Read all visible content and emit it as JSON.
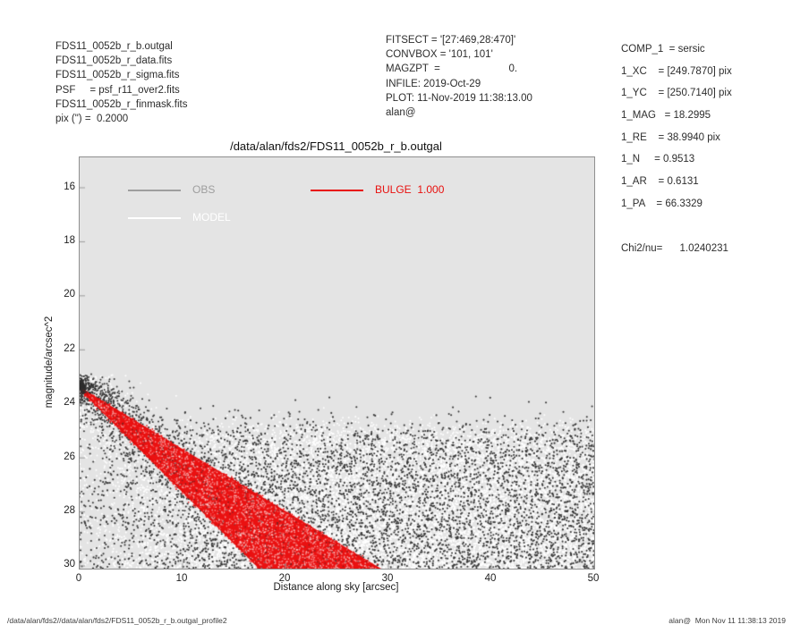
{
  "header_left": {
    "lines": [
      "FDS11_0052b_r_b.outgal",
      "FDS11_0052b_r_data.fits",
      "FDS11_0052b_r_sigma.fits",
      "PSF     = psf_r11_over2.fits",
      "FDS11_0052b_r_finmask.fits",
      "pix (\") =  0.2000"
    ]
  },
  "header_center": {
    "lines": [
      "FITSECT = '[27:469,28:470]'",
      "CONVBOX = '101, 101'",
      "MAGZPT  =                        0.",
      "INFILE: 2019-Oct-29",
      "PLOT: 11-Nov-2019 11:38:13.00",
      "alan@"
    ]
  },
  "right_panel": {
    "lines": [
      "COMP_1  = sersic",
      "1_XC    = [249.7870] pix",
      "1_YC    = [250.7140] pix",
      "1_MAG   = 18.2995",
      "1_RE    = 38.9940 pix",
      "1_N     = 0.9513",
      "1_AR    = 0.6131",
      "1_PA    = 66.3329"
    ],
    "chi2_line": "Chi2/nu=      1.0240231"
  },
  "footer": {
    "left": "/data/alan/fds2//data/alan/fds2/FDS11_0052b_r_b.outgal_profile2",
    "right": "alan@  Mon Nov 11 11:38:13 2019"
  },
  "chart_data": {
    "type": "scatter",
    "title": "/data/alan/fds2/FDS11_0052b_r_b.outgal",
    "xlabel": "Distance along sky [arcsec]",
    "ylabel": "magnitude/arcsec^2",
    "xlim": [
      0,
      50
    ],
    "ylim": [
      30,
      16
    ],
    "xticks": [
      0,
      10,
      20,
      30,
      40,
      50
    ],
    "yticks": [
      16,
      18,
      20,
      22,
      24,
      26,
      28,
      30
    ],
    "grid": false,
    "plot_background": "#e4e4e4",
    "axis_color": "#8f8f8f",
    "tick_color": "#9a9a9a",
    "legend_position": "top-left-inside",
    "legend": [
      {
        "label": "OBS",
        "color": "#9e9e9e"
      },
      {
        "label": "MODEL",
        "color": "#ffffff"
      },
      {
        "label": "BULGE  1.000",
        "color": "#e8100e"
      }
    ],
    "series": [
      {
        "name": "OBS",
        "kind": "scatter",
        "color": "#383838",
        "description": "observed surface brightness: dense central cluster near x=0 at ~23.4 mag, band of points tracking the bulge profile out to ~15 arcsec, and sky-noise cloud between ~24.8 and 30 mag across 0-50 arcsec",
        "cluster": {
          "x_sigma": 0.55,
          "x_max": 2.0,
          "mag_mean": 23.38,
          "mag_sigma": 0.16,
          "count": 90
        },
        "band_upper": {
          "x_sigma": 5.0,
          "x_max": 14,
          "slope": 0.2295,
          "intercept": 23.3,
          "sigma": 0.45,
          "count": 420
        },
        "band_lower": {
          "x_sigma": 4.5,
          "x_max": 13,
          "slope": 0.3807,
          "intercept": 23.6,
          "sigma": 0.5,
          "count": 280
        },
        "cloud": {
          "mag_top": 24.8,
          "mag_top_sigma": 0.45,
          "mag_bottom": 30.12,
          "count": 5200,
          "depth_bias": 0.88,
          "x_taper_start": 1,
          "x_taper_len": 16,
          "min_accept": 0.3
        }
      },
      {
        "name": "MODEL",
        "kind": "scatter",
        "color": "#ffffff",
        "description": "model-residual points forming a dense white noise cloud between ~25 and 30 mag, plus white scatter around the bulge wedge",
        "band_upper": {
          "x_sigma": 4.0,
          "x_max": 12,
          "slope": 0.3,
          "intercept": 23.42,
          "sigma": 0.9,
          "count": 550
        },
        "cloud": {
          "mag_top": 24.95,
          "mag_top_sigma": 0.3,
          "mag_bottom": 30.12,
          "count": 14500,
          "depth_bias": 0.85,
          "x_taper_start": 2,
          "x_taper_len": 17,
          "min_accept": 0.12
        }
      },
      {
        "name": "BULGE",
        "kind": "wedge",
        "color": "#ea1111",
        "value": "1.000",
        "description": "sersic bulge component sampled on ellipses: red fan starting at (0, 23.4 mag) widening to span x=17.6-29.2 arcsec at 30 mag",
        "vertex": [
          0,
          23.42
        ],
        "bottom_left": [
          17.6,
          30.12
        ],
        "bottom_right": [
          29.2,
          30.12
        ],
        "edge_color": "#e30d0d",
        "speckle_light": 1200,
        "speckle_pink": 600,
        "speckle_dark": 320,
        "edge_fuzz": 260
      }
    ]
  }
}
